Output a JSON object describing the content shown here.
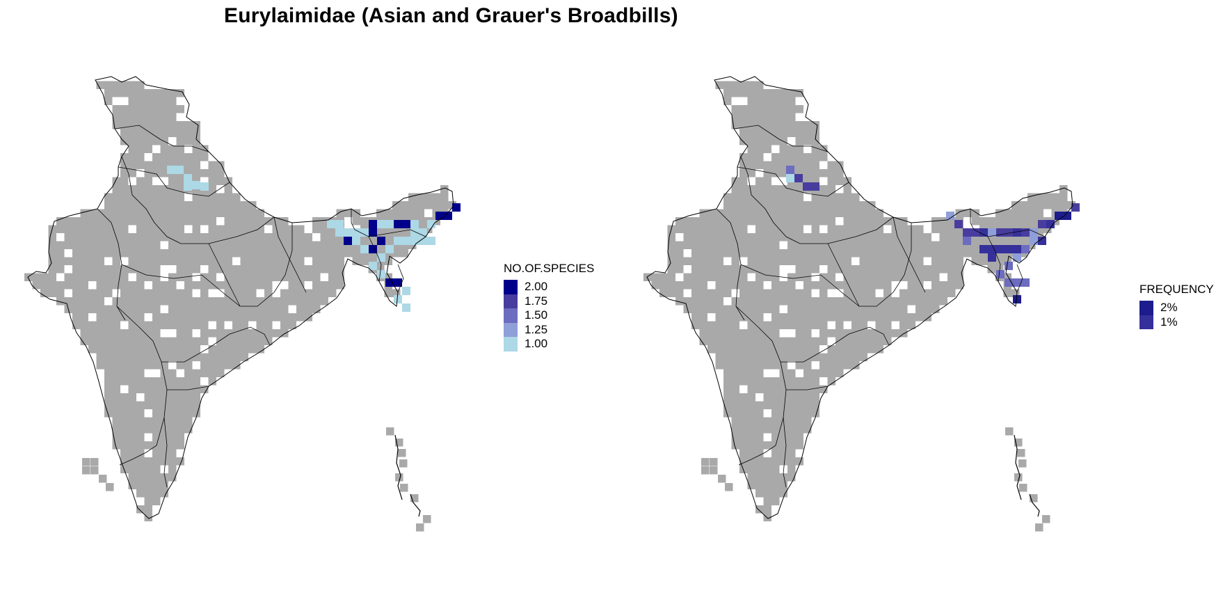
{
  "title": "Eurylaimidae (Asian and Grauer's Broadbills)",
  "maps": [
    {
      "legend": {
        "title": "NO.OF.SPECIES",
        "items": [
          {
            "label": "2.00",
            "color": "#00008b"
          },
          {
            "label": "1.75",
            "color": "#483d9f"
          },
          {
            "label": "1.50",
            "color": "#6c6cc0"
          },
          {
            "label": "1.25",
            "color": "#8f9fd8"
          },
          {
            "label": "1.00",
            "color": "#add8e6"
          }
        ]
      }
    },
    {
      "legend": {
        "title": "FREQUENCY",
        "items": [
          {
            "label": "2%",
            "color": "#1c1c8c"
          },
          {
            "label": "1%",
            "color": "#35309a"
          }
        ]
      }
    }
  ],
  "colors": {
    "land_cell": "#a9a9a9",
    "outline": "#000000"
  }
}
